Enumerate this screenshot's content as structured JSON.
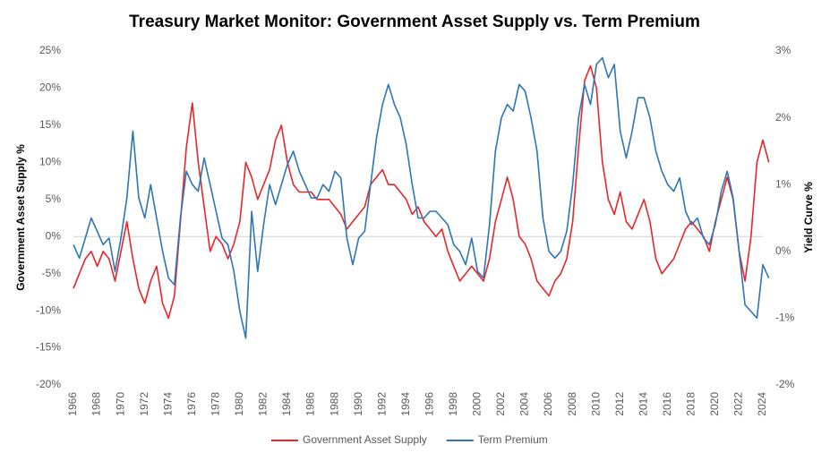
{
  "chart_data": {
    "type": "line",
    "title": "Treasury Market Monitor: Government Asset Supply vs. Term Premium",
    "ylabel": "Government Asset Supply %",
    "y2label": "Yield Curve %",
    "x": [
      1966,
      1966.5,
      1967,
      1967.5,
      1968,
      1968.5,
      1969,
      1969.5,
      1970,
      1970.5,
      1971,
      1971.5,
      1972,
      1972.5,
      1973,
      1973.5,
      1974,
      1974.5,
      1975,
      1975.5,
      1976,
      1976.5,
      1977,
      1977.5,
      1978,
      1978.5,
      1979,
      1979.5,
      1980,
      1980.5,
      1981,
      1981.5,
      1982,
      1982.5,
      1983,
      1983.5,
      1984,
      1984.5,
      1985,
      1985.5,
      1986,
      1986.5,
      1987,
      1987.5,
      1988,
      1988.5,
      1989,
      1989.5,
      1990,
      1990.5,
      1991,
      1991.5,
      1992,
      1992.5,
      1993,
      1993.5,
      1994,
      1994.5,
      1995,
      1995.5,
      1996,
      1996.5,
      1997,
      1997.5,
      1998,
      1998.5,
      1999,
      1999.5,
      2000,
      2000.5,
      2001,
      2001.5,
      2002,
      2002.5,
      2003,
      2003.5,
      2004,
      2004.5,
      2005,
      2005.5,
      2006,
      2006.5,
      2007,
      2007.5,
      2008,
      2008.5,
      2009,
      2009.5,
      2010,
      2010.5,
      2011,
      2011.5,
      2012,
      2012.5,
      2013,
      2013.5,
      2014,
      2014.5,
      2015,
      2015.5,
      2016,
      2016.5,
      2017,
      2017.5,
      2018,
      2018.5,
      2019,
      2019.5,
      2020,
      2020.5,
      2021,
      2021.5,
      2022,
      2022.5,
      2023,
      2023.5,
      2024,
      2024.5
    ],
    "series": [
      {
        "name": "Government Asset Supply",
        "color": "#e8262a",
        "values": [
          -7,
          -5,
          -3,
          -2,
          -4,
          -2,
          -3,
          -6,
          -2,
          2,
          -3,
          -7,
          -9,
          -6,
          -4,
          -9,
          -11,
          -8,
          2,
          12,
          18,
          10,
          4,
          -2,
          0,
          -1,
          -3,
          -1,
          2,
          10,
          8,
          5,
          7,
          9,
          13,
          15,
          10,
          7,
          6,
          6,
          6,
          5,
          5,
          5,
          4,
          3,
          1,
          2,
          3,
          4,
          7,
          8,
          9,
          7,
          7,
          6,
          5,
          3,
          4,
          2,
          1,
          0,
          1,
          -2,
          -4,
          -6,
          -5,
          -4,
          -5,
          -6,
          -3,
          2,
          5,
          8,
          5,
          0,
          -1,
          -3,
          -6,
          -7,
          -8,
          -6,
          -5,
          -3,
          2,
          12,
          21,
          23,
          20,
          10,
          5,
          3,
          6,
          2,
          1,
          3,
          5,
          2,
          -3,
          -5,
          -4,
          -3,
          -1,
          1,
          2,
          1,
          0,
          -2,
          2,
          5,
          8,
          5,
          -2,
          -6,
          0,
          10,
          13,
          10
        ]
      },
      {
        "name": "Term Premium",
        "color": "#2e75b6",
        "axis": "y2",
        "values": [
          0.1,
          -0.1,
          0.2,
          0.5,
          0.3,
          0.1,
          0.2,
          -0.3,
          0.2,
          0.8,
          1.8,
          0.8,
          0.5,
          1.0,
          0.5,
          0.0,
          -0.4,
          -0.5,
          0.5,
          1.2,
          1.0,
          0.9,
          1.4,
          1.0,
          0.6,
          0.2,
          0.1,
          -0.3,
          -0.9,
          -1.3,
          0.6,
          -0.3,
          0.4,
          1.0,
          0.7,
          1.0,
          1.3,
          1.5,
          1.2,
          1.0,
          0.8,
          0.8,
          1.0,
          0.9,
          1.2,
          1.1,
          0.2,
          -0.2,
          0.2,
          0.3,
          1.0,
          1.7,
          2.2,
          2.5,
          2.2,
          2.0,
          1.6,
          1.0,
          0.5,
          0.5,
          0.6,
          0.6,
          0.5,
          0.4,
          0.1,
          0.0,
          -0.2,
          0.2,
          -0.3,
          -0.4,
          0.4,
          1.5,
          2.0,
          2.2,
          2.1,
          2.5,
          2.4,
          2.0,
          1.5,
          0.5,
          0.0,
          -0.1,
          0.0,
          0.3,
          1.0,
          2.0,
          2.5,
          2.2,
          2.8,
          2.9,
          2.6,
          2.8,
          1.8,
          1.4,
          1.8,
          2.3,
          2.3,
          2.0,
          1.5,
          1.2,
          1.0,
          0.9,
          1.1,
          0.6,
          0.4,
          0.5,
          0.2,
          0.1,
          0.4,
          0.9,
          1.2,
          0.8,
          0.0,
          -0.8,
          -0.9,
          -1.0,
          -0.2,
          -0.4
        ]
      }
    ],
    "xlim": [
      1966,
      2024.6
    ],
    "xticks": [
      1966,
      1968,
      1970,
      1972,
      1974,
      1976,
      1978,
      1980,
      1982,
      1984,
      1986,
      1988,
      1990,
      1992,
      1994,
      1996,
      1998,
      2000,
      2002,
      2004,
      2006,
      2008,
      2010,
      2012,
      2014,
      2016,
      2018,
      2020,
      2022,
      2024
    ],
    "ylim": [
      -20,
      25
    ],
    "yticks": [
      {
        "value": -20,
        "label": "-20%"
      },
      {
        "value": -15,
        "label": "-15%"
      },
      {
        "value": -10,
        "label": "-10%"
      },
      {
        "value": -5,
        "label": "-5%"
      },
      {
        "value": 0,
        "label": "0%"
      },
      {
        "value": 5,
        "label": "5%"
      },
      {
        "value": 10,
        "label": "10%"
      },
      {
        "value": 15,
        "label": "15%"
      },
      {
        "value": 20,
        "label": "20%"
      },
      {
        "value": 25,
        "label": "25%"
      }
    ],
    "y2lim": [
      -2,
      3
    ],
    "y2ticks": [
      {
        "value": -2,
        "label": "-2%"
      },
      {
        "value": -1,
        "label": "-1%"
      },
      {
        "value": 0,
        "label": "0%"
      },
      {
        "value": 1,
        "label": "1%"
      },
      {
        "value": 2,
        "label": "2%"
      },
      {
        "value": 3,
        "label": "3%"
      }
    ],
    "legend": "bottom"
  }
}
